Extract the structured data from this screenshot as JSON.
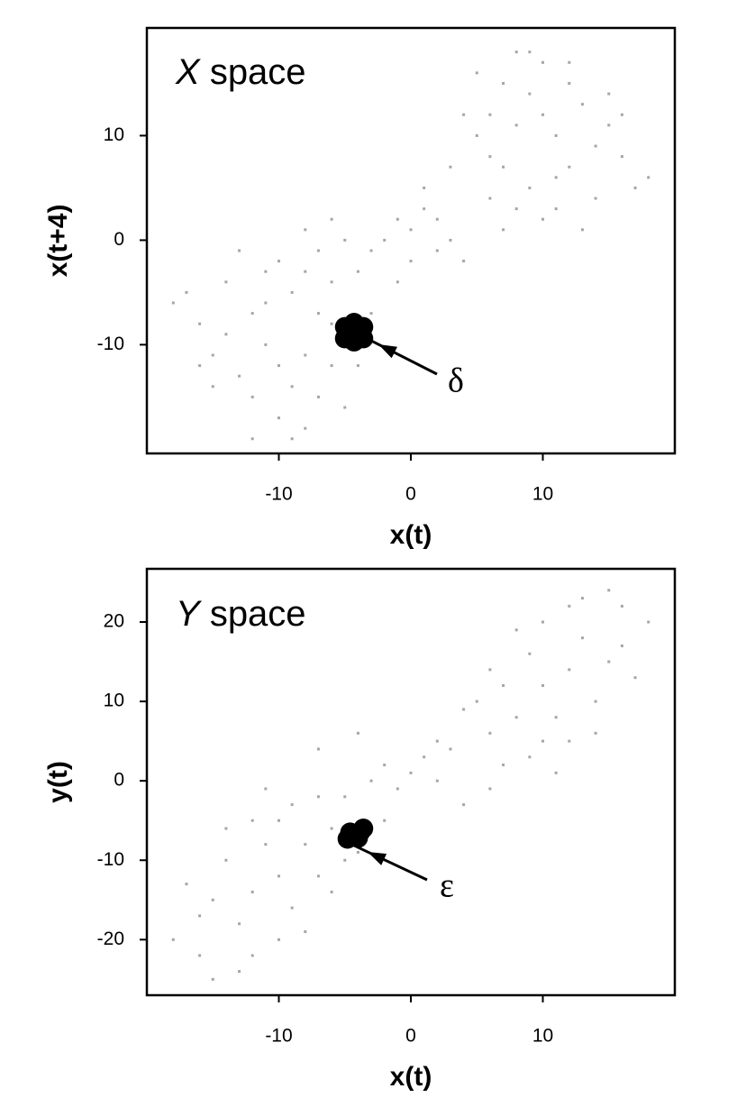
{
  "chart_data": [
    {
      "type": "scatter",
      "title_symbol": "X",
      "title_text": "space",
      "x_label": "x(t)",
      "y_label": "x(t+4)",
      "annotation": "δ",
      "xlim": [
        -20,
        20
      ],
      "ylim": [
        -20.4,
        20.3
      ],
      "xticks": [
        -10,
        0,
        10
      ],
      "yticks": [
        -10,
        0,
        10
      ],
      "series": [
        {
          "color": "#a6a6a6",
          "x": [
            -17,
            -16,
            -15,
            -14,
            -13,
            -12,
            -12,
            -11,
            -11,
            -10,
            -10,
            -9,
            -9,
            -8,
            -8,
            -7,
            -7,
            -6,
            -6,
            -5,
            -5,
            -14,
            -13,
            -10,
            -7,
            -16,
            -4,
            -3,
            -18,
            -15,
            -12,
            -9,
            -11,
            -8,
            -6,
            -4,
            -3,
            -2,
            -1,
            0,
            0,
            1,
            2,
            2,
            -5,
            -6,
            -8,
            3,
            4,
            -1,
            1,
            17,
            16,
            15,
            14,
            13,
            12,
            12,
            11,
            11,
            10,
            10,
            9,
            9,
            8,
            8,
            7,
            7,
            6,
            6,
            5,
            5,
            14,
            13,
            10,
            7,
            16,
            4,
            3,
            18,
            15,
            12,
            9,
            11,
            8,
            6
          ],
          "y": [
            -5,
            -8,
            -11,
            -4,
            -13,
            -7,
            -15,
            -10,
            -3,
            -17,
            -12,
            -5,
            -14,
            -18,
            -11,
            -7,
            -15,
            -12,
            -4,
            -16,
            -10,
            -9,
            -1,
            -2,
            -1,
            -12,
            -12,
            -7,
            -6,
            -14,
            -19,
            -19,
            -6,
            -3,
            -8,
            -3,
            -1,
            0,
            2,
            1,
            -2,
            3,
            2,
            -1,
            0,
            2,
            1,
            0,
            -2,
            -4,
            5,
            5,
            8,
            11,
            4,
            13,
            7,
            15,
            10,
            3,
            17,
            12,
            5,
            14,
            18,
            11,
            7,
            15,
            12,
            4,
            16,
            10,
            9,
            1,
            2,
            1,
            12,
            12,
            7,
            6,
            14,
            17,
            18,
            6,
            3,
            8
          ]
        },
        {
          "color": "#000000",
          "x": [
            -4.3,
            -5,
            -3.6,
            -5,
            -3.6,
            -4.3,
            -4.3
          ],
          "y": [
            -8.8,
            -8.3,
            -8.3,
            -9.4,
            -9.4,
            -7.9,
            -9.7
          ]
        }
      ]
    },
    {
      "type": "scatter",
      "title_symbol": "Y",
      "title_text": "space",
      "x_label": "x(t)",
      "y_label": "y(t)",
      "annotation": "ε",
      "xlim": [
        -20,
        20
      ],
      "ylim": [
        -27,
        26.7
      ],
      "xticks": [
        -10,
        0,
        10
      ],
      "yticks": [
        -20,
        -10,
        0,
        10,
        20
      ],
      "series": [
        {
          "color": "#a6a6a6",
          "x": [
            -18,
            -16,
            -15,
            -14,
            -13,
            -12,
            -12,
            -11,
            -10,
            -10,
            -9,
            -9,
            -8,
            -7,
            -7,
            -6,
            -5,
            -17,
            -15,
            -13,
            -11,
            -8,
            -16,
            -14,
            -6,
            -4,
            -12,
            -10,
            -5,
            -3,
            -2,
            -1,
            0,
            1,
            2,
            3,
            -7,
            -4,
            4,
            6,
            -2,
            2,
            18,
            16,
            15,
            14,
            13,
            12,
            12,
            11,
            10,
            10,
            9,
            9,
            8,
            7,
            7,
            6,
            5,
            17,
            15,
            13,
            11,
            8,
            16,
            14,
            6,
            4,
            12,
            10
          ],
          "y": [
            -20,
            -22,
            -15,
            -10,
            -18,
            -5,
            -14,
            -8,
            -20,
            -12,
            -3,
            -16,
            -8,
            -12,
            -2,
            -6,
            -10,
            -13,
            -25,
            -24,
            -1,
            -19,
            -17,
            -6,
            -14,
            -9,
            -22,
            -5,
            -2,
            0,
            2,
            -1,
            1,
            3,
            0,
            4,
            4,
            6,
            -3,
            -1,
            -5,
            5,
            20,
            22,
            15,
            10,
            18,
            5,
            14,
            8,
            20,
            12,
            3,
            16,
            8,
            12,
            2,
            6,
            10,
            13,
            24,
            23,
            1,
            19,
            17,
            6,
            14,
            9,
            22,
            5
          ]
        },
        {
          "color": "#000000",
          "x": [
            -4.8,
            -4.3,
            -3.8,
            -4.6,
            -4,
            -3.6
          ],
          "y": [
            -7.3,
            -6.9,
            -6.4,
            -6.5,
            -7.2,
            -6
          ]
        }
      ]
    }
  ]
}
